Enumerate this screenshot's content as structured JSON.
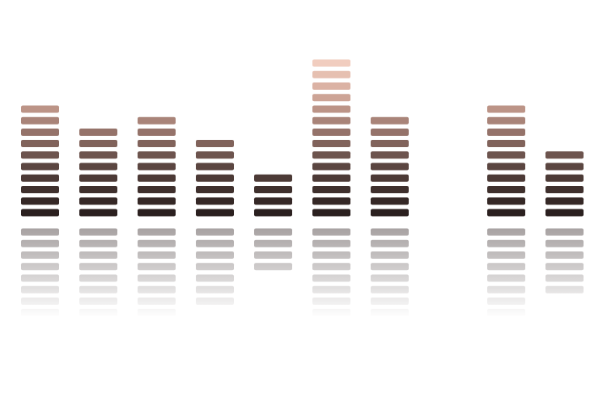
{
  "chart_data": {
    "type": "bar",
    "categories": [
      null,
      null,
      null,
      null,
      null,
      null,
      null,
      null,
      null,
      null
    ],
    "values": [
      10,
      8,
      9,
      7,
      4,
      14,
      9,
      0,
      10,
      6
    ],
    "ylim": [
      0,
      14
    ],
    "tick_labels": false,
    "grid": false
  }
}
